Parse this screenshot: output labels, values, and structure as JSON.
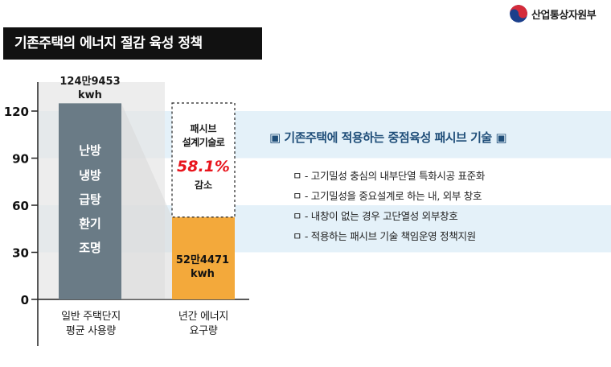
{
  "header": {
    "title": "기존주택의 에너지 절감 육성 정책",
    "logo_text": "산업통상자원부",
    "logo_icon": "taegeuk-icon"
  },
  "colors": {
    "bar_gray": "#6a7b86",
    "bar_orange": "#f3a93b",
    "band_blue": "#e4f1f9",
    "highlight_red": "#e8141c",
    "heading_blue": "#1f4e79"
  },
  "chart_data": {
    "type": "bar",
    "categories": [
      "일반 주택단지\n평균 사용량",
      "년간 에너지\n요구량"
    ],
    "values": [
      124.9453,
      52.4471
    ],
    "ylim": [
      0,
      120
    ],
    "yticks": [
      "0",
      "30",
      "60",
      "90",
      "120"
    ],
    "data_labels": [
      "124만9453\nkwh",
      "52만4471\nkwh"
    ],
    "xlabel": "",
    "ylabel": "",
    "bar1_inner_labels": [
      "난방",
      "냉방",
      "급탕",
      "환기",
      "조명"
    ],
    "reduction_note": {
      "line1": "패시브",
      "line2": "설계기술로",
      "percent": "58.1%",
      "line3": "감소"
    }
  },
  "info": {
    "heading": "▣ 기존주택에 적용하는 중점육성 패시브 기술 ▣",
    "bullets": [
      "ㅁ - 고기밀성 충심의 내부단열 특화시공 표준화",
      "ㅁ - 고기밀성을 중요설계로 하는 내, 외부 창호",
      "ㅁ - 내창이 없는 경우 고단열성 외부창호",
      "ㅁ - 적용하는 패시브 기술 책임운영 정책지원"
    ]
  }
}
